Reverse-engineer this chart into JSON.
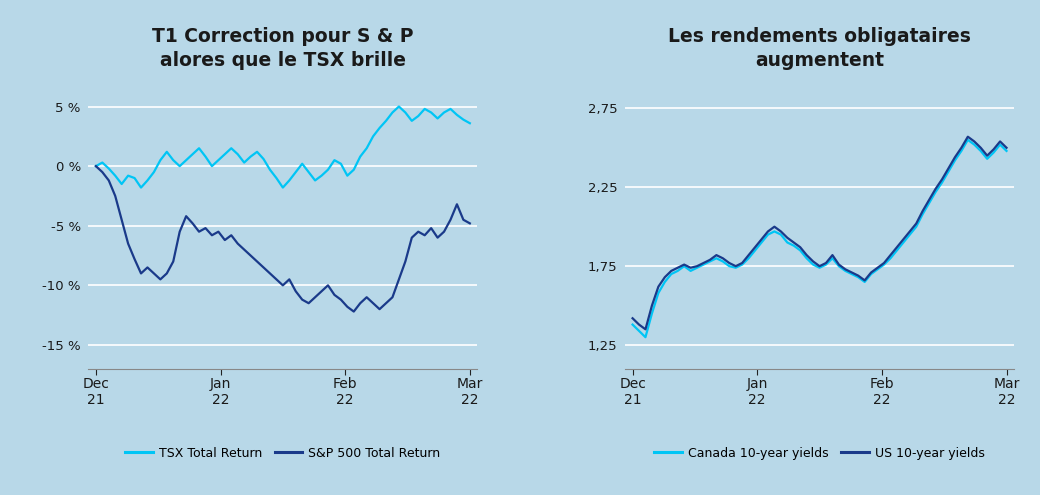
{
  "title_left": "T1 Correction pour S & P\nalores que le TSX brille",
  "title_right": "Les rendements obligataires\naugmentent",
  "background_color": "#b8d8e8",
  "left_ylim": [
    -17,
    7.5
  ],
  "left_yticks": [
    5,
    0,
    -5,
    -10,
    -15
  ],
  "left_yticklabels": [
    "5 %",
    "0 %",
    "-5 %",
    "-10 %",
    "-15 %"
  ],
  "right_ylim": [
    1.1,
    2.95
  ],
  "right_yticks": [
    2.75,
    2.25,
    1.75,
    1.25
  ],
  "right_yticklabels": [
    "2,75",
    "2,25",
    "1,75",
    "1,25"
  ],
  "xtick_labels": [
    "Dec\n21",
    "Jan\n22",
    "Feb\n22",
    "Mar\n22"
  ],
  "legend_left": [
    "TSX Total Return",
    "S&P 500 Total Return"
  ],
  "legend_right": [
    "Canada 10-year yields",
    "US 10-year yields"
  ],
  "color_tsx": "#00c5f5",
  "color_sp500": "#1a3a8a",
  "color_canada": "#00c5f5",
  "color_us": "#1a3a8a",
  "tsx_data": [
    0.0,
    0.3,
    -0.2,
    -0.8,
    -1.5,
    -0.8,
    -1.0,
    -1.8,
    -1.2,
    -0.5,
    0.5,
    1.2,
    0.5,
    0.0,
    0.5,
    1.0,
    1.5,
    0.8,
    0.0,
    0.5,
    1.0,
    1.5,
    1.0,
    0.3,
    0.8,
    1.2,
    0.6,
    -0.3,
    -1.0,
    -1.8,
    -1.2,
    -0.5,
    0.2,
    -0.5,
    -1.2,
    -0.8,
    -0.3,
    0.5,
    0.2,
    -0.8,
    -0.3,
    0.8,
    1.5,
    2.5,
    3.2,
    3.8,
    4.5,
    5.0,
    4.5,
    3.8,
    4.2,
    4.8,
    4.5,
    4.0,
    4.5,
    4.8,
    4.3,
    3.9,
    3.6
  ],
  "sp500_data": [
    0.0,
    -0.5,
    -1.2,
    -2.5,
    -4.5,
    -6.5,
    -7.8,
    -9.0,
    -8.5,
    -9.0,
    -9.5,
    -9.0,
    -8.0,
    -5.5,
    -4.2,
    -4.8,
    -5.5,
    -5.2,
    -5.8,
    -5.5,
    -6.2,
    -5.8,
    -6.5,
    -7.0,
    -7.5,
    -8.0,
    -8.5,
    -9.0,
    -9.5,
    -10.0,
    -9.5,
    -10.5,
    -11.2,
    -11.5,
    -11.0,
    -10.5,
    -10.0,
    -10.8,
    -11.2,
    -11.8,
    -12.2,
    -11.5,
    -11.0,
    -11.5,
    -12.0,
    -11.5,
    -11.0,
    -9.5,
    -8.0,
    -6.0,
    -5.5,
    -5.8,
    -5.2,
    -6.0,
    -5.5,
    -4.5,
    -3.2,
    -4.5,
    -4.8
  ],
  "canada_yields": [
    1.38,
    1.34,
    1.3,
    1.45,
    1.58,
    1.65,
    1.7,
    1.72,
    1.75,
    1.72,
    1.74,
    1.76,
    1.78,
    1.8,
    1.78,
    1.75,
    1.74,
    1.76,
    1.8,
    1.85,
    1.9,
    1.95,
    1.97,
    1.95,
    1.9,
    1.88,
    1.85,
    1.8,
    1.76,
    1.74,
    1.76,
    1.8,
    1.75,
    1.72,
    1.7,
    1.68,
    1.65,
    1.7,
    1.73,
    1.76,
    1.8,
    1.85,
    1.9,
    1.95,
    2.0,
    2.08,
    2.15,
    2.22,
    2.28,
    2.35,
    2.42,
    2.48,
    2.55,
    2.52,
    2.48,
    2.43,
    2.47,
    2.52,
    2.48
  ],
  "us_yields": [
    1.42,
    1.38,
    1.35,
    1.5,
    1.62,
    1.68,
    1.72,
    1.74,
    1.76,
    1.74,
    1.75,
    1.77,
    1.79,
    1.82,
    1.8,
    1.77,
    1.75,
    1.77,
    1.82,
    1.87,
    1.92,
    1.97,
    2.0,
    1.97,
    1.93,
    1.9,
    1.87,
    1.82,
    1.78,
    1.75,
    1.77,
    1.82,
    1.76,
    1.73,
    1.71,
    1.69,
    1.66,
    1.71,
    1.74,
    1.77,
    1.82,
    1.87,
    1.92,
    1.97,
    2.02,
    2.1,
    2.17,
    2.24,
    2.3,
    2.37,
    2.44,
    2.5,
    2.57,
    2.54,
    2.5,
    2.45,
    2.49,
    2.54,
    2.5
  ]
}
